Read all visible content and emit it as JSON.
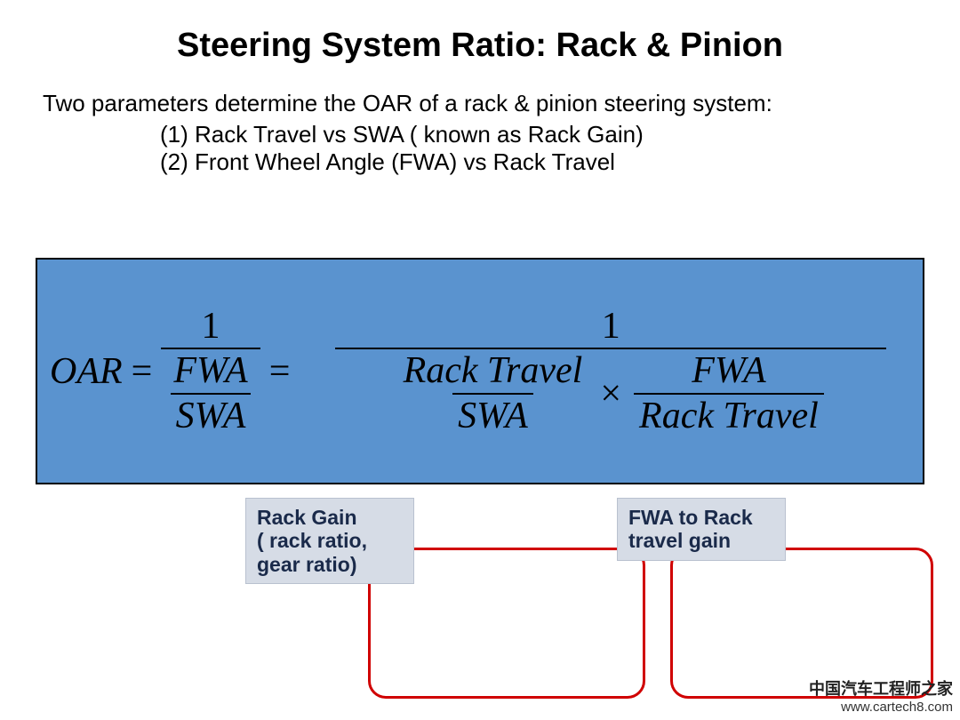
{
  "title": "Steering System Ratio: Rack & Pinion",
  "intro": "Two parameters determine the OAR of a rack & pinion steering system:",
  "param1": "(1) Rack Travel vs SWA ( known as Rack Gain)",
  "param2": "(2) Front Wheel Angle (FWA) vs Rack Travel",
  "equation": {
    "lhs": "OAR",
    "eq": "=",
    "one": "1",
    "first_frac": {
      "num": "FWA",
      "den": "SWA"
    },
    "second": {
      "termA": {
        "num": "Rack Travel",
        "den": "SWA"
      },
      "times": "×",
      "termB": {
        "num": "FWA",
        "den": "Rack Travel"
      }
    },
    "box_bg": "#5a93cf",
    "border_color": "#000000",
    "callout_color": "#d00000"
  },
  "captions": {
    "rack_gain": "Rack Gain\n( rack ratio, gear ratio)",
    "fwa_gain": "FWA to Rack travel gain",
    "box_bg": "#d6dce6"
  },
  "watermark": {
    "cn": "中国汽车工程师之家",
    "url": "www.cartech8.com"
  }
}
